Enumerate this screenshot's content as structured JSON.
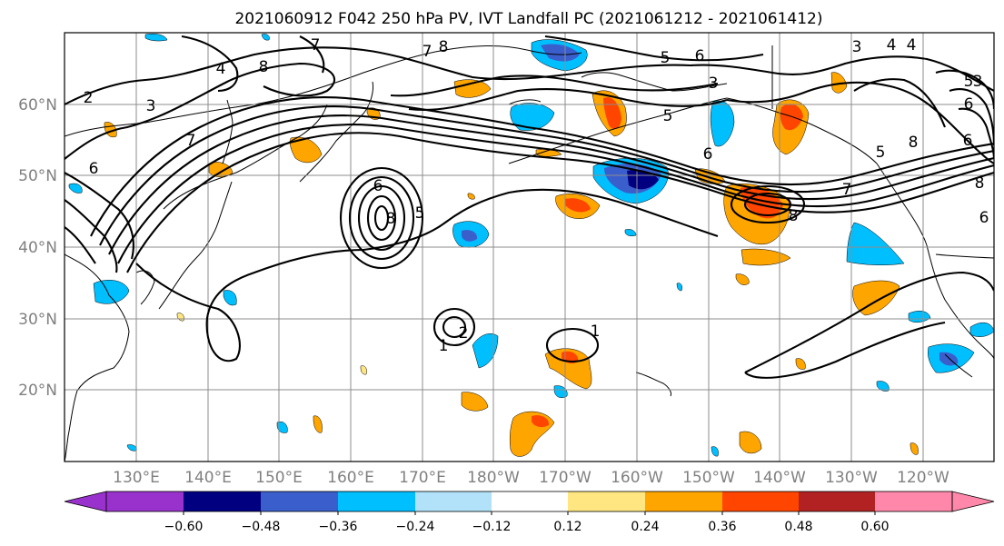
{
  "title": "2021060912 F042 250 hPa PV, IVT Landfall PC (2021061212 - 2021061412)",
  "colors": {
    "minus_high": "#9932cc",
    "minus_060": "#000080",
    "minus_048": "#3a5fcd",
    "minus_036": "#00bfff",
    "minus_024": "#b2e2f9",
    "neutral": "#ffffff",
    "plus_012": "#ffe680",
    "plus_024": "#ffa500",
    "plus_036": "#ff4500",
    "plus_048": "#b22222",
    "plus_high": "#ff88aa",
    "contour": "#000000",
    "grid": "#8c8c8c",
    "tick_text": "#808080"
  },
  "chart_data": {
    "type": "heatmap",
    "title": "2021060912 F042 250 hPa PV, IVT Landfall PC (2021061212 - 2021061412)",
    "x_ticks": [
      "130°E",
      "140°E",
      "150°E",
      "160°E",
      "170°E",
      "180°W",
      "170°W",
      "160°W",
      "150°W",
      "140°W",
      "130°W",
      "120°W"
    ],
    "y_ticks": [
      "20°N",
      "30°N",
      "40°N",
      "50°N",
      "60°N"
    ],
    "lon_range": [
      120,
      250
    ],
    "lat_range": [
      10,
      70
    ],
    "grid": true,
    "colorbar": {
      "orientation": "horizontal",
      "extend": "both",
      "bounds": [
        -0.6,
        -0.48,
        -0.36,
        -0.24,
        -0.12,
        0.12,
        0.24,
        0.36,
        0.48,
        0.6
      ],
      "tick_labels": [
        "−0.60",
        "−0.48",
        "−0.36",
        "−0.24",
        "−0.12",
        "0.12",
        "0.24",
        "0.36",
        "0.48",
        "0.60"
      ]
    },
    "contour_labels": [
      "2",
      "3",
      "6",
      "4",
      "8",
      "7",
      "8",
      "6",
      "3",
      "6",
      "5",
      "5",
      "4",
      "3",
      "6",
      "5",
      "8",
      "7",
      "6",
      "8",
      "5",
      "6",
      "8",
      "7",
      "2",
      "1",
      "1",
      "8",
      "7",
      "5",
      "6",
      "4",
      "3"
    ]
  }
}
